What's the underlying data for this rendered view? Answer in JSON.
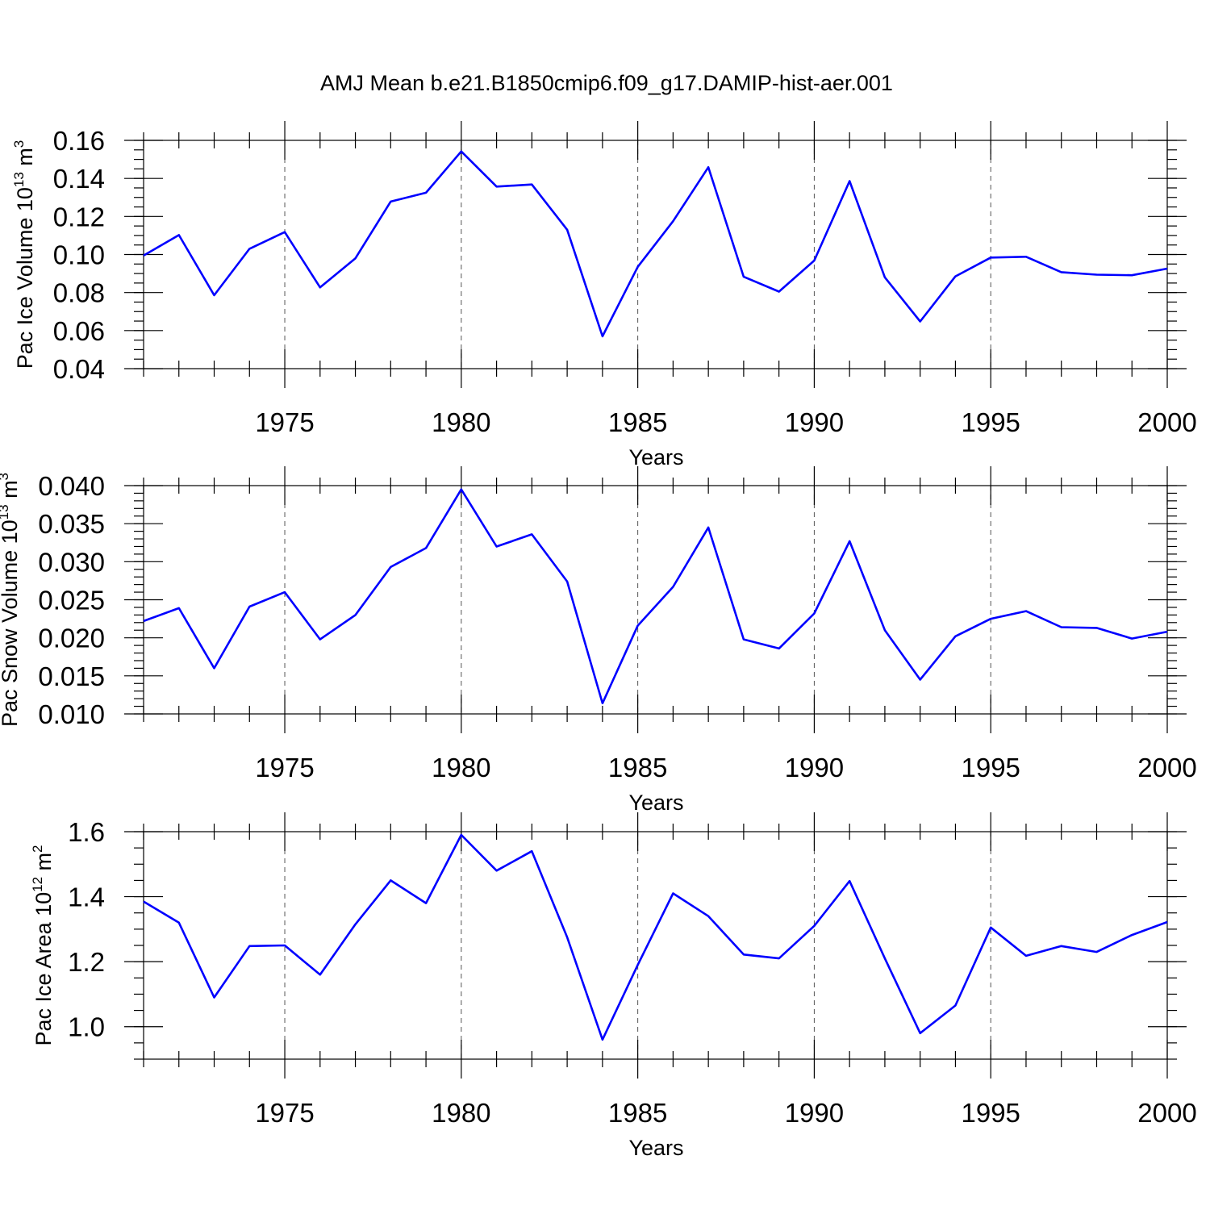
{
  "title": "AMJ Mean b.e21.B1850cmip6.f09_g17.DAMIP-hist-aer.001",
  "chart_data": [
    {
      "type": "line",
      "name": "pac-ice-volume",
      "ylabel_main": "Pac Ice Volume 10",
      "ylabel_exp": "13",
      "ylabel_unit": " m",
      "ylabel_unit_exp": "3",
      "xlabel": "Years",
      "xlim": [
        1971,
        2000
      ],
      "ylim": [
        0.04,
        0.16
      ],
      "yticks": [
        0.04,
        0.06,
        0.08,
        0.1,
        0.12,
        0.14,
        0.16
      ],
      "ytick_labels": [
        "0.04",
        "0.06",
        "0.08",
        "0.10",
        "0.12",
        "0.14",
        "0.16"
      ],
      "yminor_step": 0.005,
      "color": "#0000ff",
      "x": [
        1971,
        1972,
        1973,
        1974,
        1975,
        1976,
        1977,
        1978,
        1979,
        1980,
        1981,
        1982,
        1983,
        1984,
        1985,
        1986,
        1987,
        1988,
        1989,
        1990,
        1991,
        1992,
        1993,
        1994,
        1995,
        1996,
        1997,
        1998,
        1999,
        2000
      ],
      "values": [
        0.0995,
        0.1102,
        0.0786,
        0.103,
        0.1118,
        0.0827,
        0.098,
        0.1278,
        0.1325,
        0.1542,
        0.1357,
        0.1368,
        0.113,
        0.057,
        0.0935,
        0.1175,
        0.1459,
        0.0883,
        0.0805,
        0.0968,
        0.1386,
        0.088,
        0.0648,
        0.0885,
        0.0984,
        0.0988,
        0.0907,
        0.0894,
        0.0891,
        0.0926
      ]
    },
    {
      "type": "line",
      "name": "pac-snow-volume",
      "ylabel_main": "Pac Snow Volume 10",
      "ylabel_exp": "13",
      "ylabel_unit": " m",
      "ylabel_unit_exp": "3",
      "xlabel": "Years",
      "xlim": [
        1971,
        2000
      ],
      "ylim": [
        0.01,
        0.04
      ],
      "yticks": [
        0.01,
        0.015,
        0.02,
        0.025,
        0.03,
        0.035,
        0.04
      ],
      "ytick_labels": [
        "0.010",
        "0.015",
        "0.020",
        "0.025",
        "0.030",
        "0.035",
        "0.040"
      ],
      "yminor_step": 0.001,
      "color": "#0000ff",
      "x": [
        1971,
        1972,
        1973,
        1974,
        1975,
        1976,
        1977,
        1978,
        1979,
        1980,
        1981,
        1982,
        1983,
        1984,
        1985,
        1986,
        1987,
        1988,
        1989,
        1990,
        1991,
        1992,
        1993,
        1994,
        1995,
        1996,
        1997,
        1998,
        1999,
        2000
      ],
      "values": [
        0.0222,
        0.0239,
        0.016,
        0.0241,
        0.026,
        0.0198,
        0.023,
        0.0293,
        0.0318,
        0.0395,
        0.032,
        0.0336,
        0.0274,
        0.0114,
        0.0216,
        0.0267,
        0.0345,
        0.0198,
        0.0186,
        0.0232,
        0.0327,
        0.021,
        0.0145,
        0.0202,
        0.0225,
        0.0235,
        0.0214,
        0.0213,
        0.0199,
        0.0208
      ]
    },
    {
      "type": "line",
      "name": "pac-ice-area",
      "ylabel_main": "Pac Ice Area 10",
      "ylabel_exp": "12",
      "ylabel_unit": " m",
      "ylabel_unit_exp": "2",
      "xlabel": "Years",
      "xlim": [
        1971,
        2000
      ],
      "ylim": [
        0.9,
        1.6
      ],
      "yticks": [
        1.0,
        1.2,
        1.4,
        1.6
      ],
      "ytick_labels": [
        "1.0",
        "1.2",
        "1.4",
        "1.6"
      ],
      "yminor_step": 0.05,
      "color": "#0000ff",
      "x": [
        1971,
        1972,
        1973,
        1974,
        1975,
        1976,
        1977,
        1978,
        1979,
        1980,
        1981,
        1982,
        1983,
        1984,
        1985,
        1986,
        1987,
        1988,
        1989,
        1990,
        1991,
        1992,
        1993,
        1994,
        1995,
        1996,
        1997,
        1998,
        1999,
        2000
      ],
      "values": [
        1.385,
        1.32,
        1.09,
        1.248,
        1.25,
        1.16,
        1.315,
        1.45,
        1.38,
        1.59,
        1.48,
        1.54,
        1.275,
        0.96,
        1.19,
        1.41,
        1.34,
        1.222,
        1.21,
        1.31,
        1.448,
        1.21,
        0.98,
        1.065,
        1.305,
        1.218,
        1.248,
        1.23,
        1.282,
        1.322
      ]
    }
  ],
  "xticks": [
    1975,
    1980,
    1985,
    1990,
    1995,
    2000
  ],
  "xtick_labels": [
    "1975",
    "1980",
    "1985",
    "1990",
    "1995",
    "2000"
  ]
}
